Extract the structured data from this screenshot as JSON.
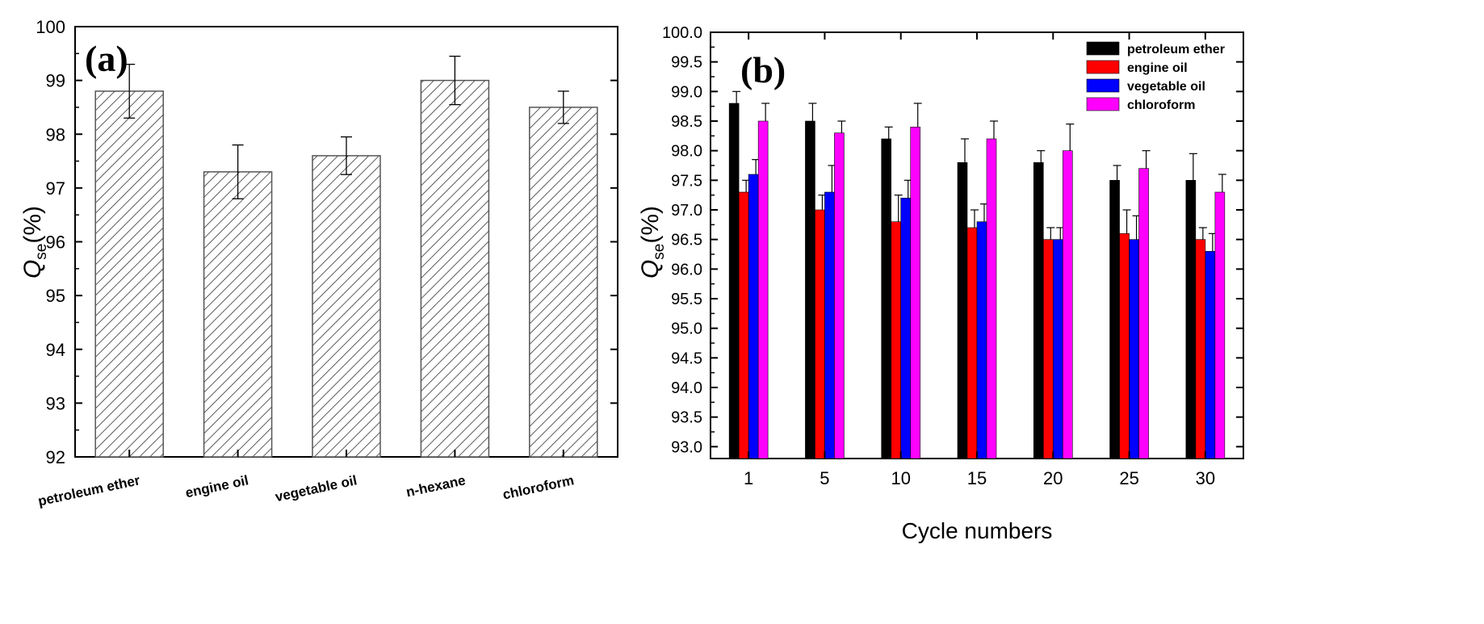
{
  "chart_data": [
    {
      "type": "bar",
      "panel_label": "(a)",
      "categories": [
        "petroleum ether",
        "engine oil",
        "vegetable oil",
        "n-hexane",
        "chloroform"
      ],
      "values": [
        98.8,
        97.3,
        97.6,
        99.0,
        98.5
      ],
      "errors": [
        0.5,
        0.5,
        0.35,
        0.45,
        0.3
      ],
      "ylabel_main": "Q",
      "ylabel_sub": "se",
      "ylabel_unit": "(%)",
      "xlabel": "",
      "ylim": [
        92,
        100
      ],
      "yticks": [
        "92",
        "93",
        "94",
        "95",
        "96",
        "97",
        "98",
        "99",
        "100"
      ],
      "fill": "hatched",
      "grid": false
    },
    {
      "type": "bar",
      "panel_label": "(b)",
      "categories": [
        "1",
        "5",
        "10",
        "15",
        "20",
        "25",
        "30"
      ],
      "series": [
        {
          "name": "petroleum ether",
          "color": "#000000",
          "values": [
            98.8,
            98.5,
            98.2,
            97.8,
            97.8,
            97.5,
            97.5
          ],
          "errors": [
            0.2,
            0.3,
            0.2,
            0.4,
            0.2,
            0.25,
            0.45
          ]
        },
        {
          "name": "engine oil",
          "color": "#ff0000",
          "values": [
            97.3,
            97.0,
            96.8,
            96.7,
            96.5,
            96.6,
            96.5
          ],
          "errors": [
            0.2,
            0.25,
            0.45,
            0.3,
            0.2,
            0.4,
            0.2
          ]
        },
        {
          "name": "vegetable oil",
          "color": "#0000ff",
          "values": [
            97.6,
            97.3,
            97.2,
            96.8,
            96.5,
            96.5,
            96.3
          ],
          "errors": [
            0.25,
            0.45,
            0.3,
            0.3,
            0.2,
            0.4,
            0.3
          ]
        },
        {
          "name": "chloroform",
          "color": "#ff00ff",
          "values": [
            98.5,
            98.3,
            98.4,
            98.2,
            98.0,
            97.7,
            97.3
          ],
          "errors": [
            0.3,
            0.2,
            0.4,
            0.3,
            0.45,
            0.3,
            0.3
          ]
        }
      ],
      "xlabel": "Cycle numbers",
      "ylabel_main": "Q",
      "ylabel_sub": "se",
      "ylabel_unit": "(%)",
      "ylim": [
        92.8,
        100
      ],
      "yticks": [
        "93.0",
        "93.5",
        "94.0",
        "94.5",
        "95.0",
        "95.5",
        "96.0",
        "96.5",
        "97.0",
        "97.5",
        "98.0",
        "98.5",
        "99.0",
        "99.5",
        "100.0"
      ],
      "legend_position": "top-right",
      "grid": false
    }
  ]
}
